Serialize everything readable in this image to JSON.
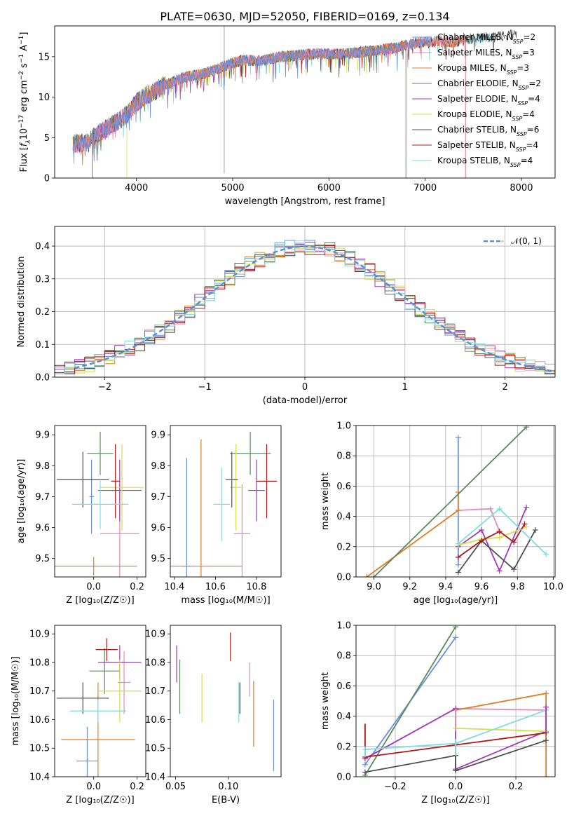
{
  "figure_title": "PLATE=0630, MJD=52050, FIBERID=0169, z=0.134",
  "colors": {
    "chabrier_miles": "#6a8fe0",
    "salpeter_miles": "#e48ab4",
    "kroupa_miles": "#e07c24",
    "chabrier_elodie": "#5a8a5e",
    "salpeter_elodie": "#a23ab8",
    "kroupa_elodie": "#d2e04a",
    "chabrier_stelib": "#505050",
    "salpeter_stelib": "#b01818",
    "kroupa_stelib": "#80dbe3",
    "normal": "#5b8fd6",
    "grid": "#b0b0b0"
  },
  "chart_data": [
    {
      "id": "spectrum",
      "type": "line",
      "title": "PLATE=0630, MJD=52050, FIBERID=0169, z=0.134",
      "xlabel": "wavelength [Angstrom, rest frame]",
      "ylabel_parts": [
        "Flux [",
        "f",
        "λ",
        "10",
        "−17",
        " erg cm",
        "−2",
        " s",
        "−1",
        " A",
        "−1",
        "]"
      ],
      "xlim": [
        3150,
        8350
      ],
      "ylim": [
        0,
        18.8
      ],
      "xticks": [
        "4000",
        "5000",
        "6000",
        "7000",
        "8000"
      ],
      "yticks": [
        "0",
        "5",
        "10",
        "15"
      ],
      "grid": false,
      "legend_position": "top-right",
      "legend": [
        {
          "model": "Chabrier MILES",
          "n": "2"
        },
        {
          "model": "Salpeter MILES",
          "n": "3"
        },
        {
          "model": "Kroupa MILES",
          "n": "3"
        },
        {
          "model": "Chabrier ELODIE",
          "n": "2"
        },
        {
          "model": "Salpeter ELODIE",
          "n": "4"
        },
        {
          "model": "Kroupa ELODIE",
          "n": "4"
        },
        {
          "model": "Chabrier STELIB",
          "n": "6"
        },
        {
          "model": "Salpeter STELIB",
          "n": "4"
        },
        {
          "model": "Kroupa STELIB",
          "n": "4"
        }
      ],
      "continuum": {
        "x": [
          3340,
          3500,
          3600,
          3700,
          3800,
          3900,
          4000,
          4100,
          4200,
          4300,
          4500,
          4700,
          4900,
          5100,
          5300,
          5500,
          5700,
          5900,
          6100,
          6300,
          6500,
          6700,
          6900,
          7100,
          7300,
          7500,
          7700,
          7900,
          8000
        ],
        "y": [
          4.2,
          4.4,
          5.5,
          6.2,
          7.0,
          7.8,
          9.3,
          10.2,
          10.8,
          11.5,
          12.5,
          12.9,
          13.8,
          14.6,
          14.5,
          15.0,
          15.2,
          15.4,
          15.3,
          15.5,
          15.8,
          16.1,
          16.7,
          16.9,
          16.8,
          17.3,
          17.4,
          17.7,
          17.6
        ]
      }
    },
    {
      "id": "residuals",
      "type": "histogram",
      "xlabel": "(data-model)/error",
      "ylabel": "Normed distribution",
      "xlim": [
        -2.5,
        2.5
      ],
      "ylim": [
        0,
        0.46
      ],
      "xticks": [
        "−2",
        "−1",
        "0",
        "1",
        "2"
      ],
      "yticks": [
        "0.0",
        "0.1",
        "0.2",
        "0.3",
        "0.4"
      ],
      "grid": true,
      "legend_position": "top-right",
      "legend": "𝒩(0, 1)",
      "bin_width": 0.1
    },
    {
      "id": "age-vs-Z",
      "type": "errorbar",
      "xlabel": "Z [log₁₀(Z/Z☉)]",
      "ylabel": "age  [log₁₀(age/yr)]",
      "xlim": [
        -0.18,
        0.24
      ],
      "ylim": [
        9.44,
        9.93
      ],
      "xticks": [
        "0.0",
        "0.2"
      ],
      "yticks": [
        "9.5",
        "9.6",
        "9.7",
        "9.8",
        "9.9"
      ],
      "points": [
        {
          "key": "chabrier_miles",
          "x": -0.01,
          "xerr": 0.01,
          "y": 9.7,
          "yerr": 0.12
        },
        {
          "key": "salpeter_miles",
          "x": 0.12,
          "xerr": 0.09,
          "y": 9.58,
          "yerr": 0.16
        },
        {
          "key": "kroupa_miles",
          "x": 0.0,
          "xerr": 0.2,
          "y": 9.475,
          "yerr": 0.03
        },
        {
          "key": "chabrier_elodie",
          "x": 0.03,
          "xerr": 0.06,
          "y": 9.84,
          "yerr": 0.07
        },
        {
          "key": "salpeter_elodie",
          "x": 0.12,
          "xerr": 0.1,
          "y": 9.72,
          "yerr": 0.1
        },
        {
          "key": "kroupa_elodie",
          "x": 0.13,
          "xerr": 0.1,
          "y": 9.73,
          "yerr": 0.14
        },
        {
          "key": "chabrier_stelib",
          "x": -0.05,
          "xerr": 0.12,
          "y": 9.755,
          "yerr": 0.09
        },
        {
          "key": "salpeter_stelib",
          "x": 0.1,
          "xerr": 0.02,
          "y": 9.75,
          "yerr": 0.12
        },
        {
          "key": "kroupa_stelib",
          "x": 0.03,
          "xerr": 0.13,
          "y": 9.675,
          "yerr": 0.08
        }
      ]
    },
    {
      "id": "age-vs-mass",
      "type": "errorbar",
      "xlabel": "mass [log₁₀(M/M☉)]",
      "xlim": [
        10.38,
        10.92
      ],
      "ylim": [
        9.44,
        9.93
      ],
      "xticks": [
        "10.4",
        "10.6",
        "10.8"
      ],
      "yticks": [
        "9.5",
        "9.6",
        "9.7",
        "9.8",
        "9.9"
      ],
      "points": [
        {
          "key": "chabrier_miles",
          "x": 10.46,
          "xerr": 0.02,
          "y": 9.475,
          "yerr": 0.35
        },
        {
          "key": "salpeter_miles",
          "x": 10.73,
          "xerr": 0.04,
          "y": 9.58,
          "yerr": 0.16
        },
        {
          "key": "kroupa_miles",
          "x": 10.53,
          "xerr": 0.2,
          "y": 9.475,
          "yerr": 0.41
        },
        {
          "key": "chabrier_elodie",
          "x": 10.77,
          "xerr": 0.1,
          "y": 9.84,
          "yerr": 0.07
        },
        {
          "key": "salpeter_elodie",
          "x": 10.8,
          "xerr": 0.04,
          "y": 9.72,
          "yerr": 0.1
        },
        {
          "key": "kroupa_elodie",
          "x": 10.7,
          "xerr": 0.03,
          "y": 9.73,
          "yerr": 0.14
        },
        {
          "key": "chabrier_stelib",
          "x": 10.68,
          "xerr": 0.03,
          "y": 9.755,
          "yerr": 0.09
        },
        {
          "key": "salpeter_stelib",
          "x": 10.85,
          "xerr": 0.05,
          "y": 9.75,
          "yerr": 0.12
        },
        {
          "key": "kroupa_stelib",
          "x": 10.63,
          "xerr": 0.04,
          "y": 9.675,
          "yerr": 0.12
        }
      ]
    },
    {
      "id": "massweight-vs-age",
      "type": "line",
      "xlabel": "age  [log₁₀(age/yr)]",
      "ylabel": "mass weight",
      "xlim": [
        8.9,
        10.01
      ],
      "ylim": [
        0,
        1
      ],
      "xticks": [
        "9.0",
        "9.2",
        "9.4",
        "9.6",
        "9.8",
        "10.0"
      ],
      "yticks": [
        "0.0",
        "0.2",
        "0.4",
        "0.6",
        "0.8",
        "1.0"
      ],
      "grid": true,
      "series": [
        {
          "key": "chabrier_miles",
          "x": [
            9.47,
            9.47
          ],
          "y": [
            0.92,
            0.08
          ]
        },
        {
          "key": "salpeter_miles",
          "x": [
            9.47,
            9.65,
            9.7
          ],
          "y": [
            0.44,
            0.45,
            0.3
          ]
        },
        {
          "key": "kroupa_miles",
          "x": [
            8.96,
            9.47,
            9.47
          ],
          "y": [
            0.0,
            0.44,
            0.56
          ]
        },
        {
          "key": "chabrier_elodie",
          "x": [
            9.0,
            9.85
          ],
          "y": [
            0.0,
            0.99
          ]
        },
        {
          "key": "salpeter_elodie",
          "x": [
            9.47,
            9.6,
            9.7,
            9.85
          ],
          "y": [
            0.2,
            0.31,
            0.04,
            0.46
          ]
        },
        {
          "key": "kroupa_elodie",
          "x": [
            9.47,
            9.6,
            9.7,
            9.85
          ],
          "y": [
            0.21,
            0.25,
            0.26,
            0.33
          ]
        },
        {
          "key": "chabrier_stelib",
          "x": [
            9.47,
            9.6,
            9.78,
            9.9
          ],
          "y": [
            0.03,
            0.24,
            0.05,
            0.31
          ]
        },
        {
          "key": "salpeter_stelib",
          "x": [
            9.47,
            9.6,
            9.7,
            9.78,
            9.84
          ],
          "y": [
            0.13,
            0.24,
            0.3,
            0.23,
            0.35
          ]
        },
        {
          "key": "kroupa_stelib",
          "x": [
            9.47,
            9.7,
            9.96
          ],
          "y": [
            0.22,
            0.45,
            0.15
          ]
        }
      ]
    },
    {
      "id": "mass-vs-Z",
      "type": "errorbar",
      "xlabel": "Z [log₁₀(Z/Z☉)]",
      "ylabel": "mass [log₁₀(M/M☉)]",
      "xlim": [
        -0.18,
        0.24
      ],
      "ylim": [
        10.4,
        10.93
      ],
      "xticks": [
        "0.0",
        "0.2"
      ],
      "yticks": [
        "10.4",
        "10.5",
        "10.6",
        "10.7",
        "10.8",
        "10.9"
      ],
      "points": [
        {
          "key": "chabrier_miles",
          "x": -0.03,
          "xerr": 0.05,
          "y": 10.455,
          "yerr": 0.12
        },
        {
          "key": "salpeter_miles",
          "x": 0.14,
          "xerr": 0.03,
          "y": 10.73,
          "yerr": 0.11
        },
        {
          "key": "kroupa_miles",
          "x": 0.02,
          "xerr": 0.17,
          "y": 10.53,
          "yerr": 0.2
        },
        {
          "key": "chabrier_elodie",
          "x": 0.05,
          "xerr": 0.07,
          "y": 10.77,
          "yerr": 0.08
        },
        {
          "key": "salpeter_elodie",
          "x": 0.12,
          "xerr": 0.1,
          "y": 10.8,
          "yerr": 0.06
        },
        {
          "key": "kroupa_elodie",
          "x": 0.12,
          "xerr": 0.1,
          "y": 10.7,
          "yerr": 0.11
        },
        {
          "key": "chabrier_stelib",
          "x": -0.05,
          "xerr": 0.12,
          "y": 10.675,
          "yerr": 0.055
        },
        {
          "key": "salpeter_stelib",
          "x": 0.06,
          "xerr": 0.05,
          "y": 10.845,
          "yerr": 0.04
        },
        {
          "key": "kroupa_stelib",
          "x": 0.02,
          "xerr": 0.13,
          "y": 10.63,
          "yerr": 0.04
        }
      ]
    },
    {
      "id": "mass-vs-ebv",
      "type": "errorbar",
      "xlabel": "E(B-V)",
      "xlim": [
        0.045,
        0.15
      ],
      "ylim": [
        10.4,
        10.93
      ],
      "xticks": [
        "0.05",
        "0.10"
      ],
      "yticks": [
        "10.4",
        "10.5",
        "10.6",
        "10.7",
        "10.8",
        "10.9"
      ],
      "points": [
        {
          "key": "chabrier_miles",
          "x": 0.143,
          "xerr": 0,
          "y": 10.545,
          "yerr": 0.125
        },
        {
          "key": "salpeter_miles",
          "x": 0.12,
          "xerr": 0,
          "y": 10.74,
          "yerr": 0.06
        },
        {
          "key": "kroupa_miles",
          "x": 0.124,
          "xerr": 0,
          "y": 10.62,
          "yerr": 0.115
        },
        {
          "key": "chabrier_elodie",
          "x": 0.054,
          "xerr": 0,
          "y": 10.715,
          "yerr": 0.095
        },
        {
          "key": "salpeter_elodie",
          "x": 0.051,
          "xerr": 0,
          "y": 10.795,
          "yerr": 0.065
        },
        {
          "key": "kroupa_elodie",
          "x": 0.075,
          "xerr": 0,
          "y": 10.675,
          "yerr": 0.085
        },
        {
          "key": "chabrier_stelib",
          "x": 0.111,
          "xerr": 0,
          "y": 10.675,
          "yerr": 0.055
        },
        {
          "key": "salpeter_stelib",
          "x": 0.102,
          "xerr": 0,
          "y": 10.855,
          "yerr": 0.05
        },
        {
          "key": "kroupa_stelib",
          "x": 0.11,
          "xerr": 0,
          "y": 10.66,
          "yerr": 0.07
        }
      ]
    },
    {
      "id": "massweight-vs-Z",
      "type": "line",
      "xlabel": "Z [log₁₀(Z/Z☉)]",
      "ylabel": "mass weight",
      "xlim": [
        -0.33,
        0.33
      ],
      "ylim": [
        0,
        1
      ],
      "xticks": [
        "−0.2",
        "0.0",
        "0.2"
      ],
      "yticks": [
        "0.0",
        "0.2",
        "0.4",
        "0.6",
        "0.8",
        "1.0"
      ],
      "grid": true,
      "series": [
        {
          "key": "chabrier_miles",
          "x": [
            -0.3,
            0.0
          ],
          "y": [
            0.08,
            0.92
          ]
        },
        {
          "key": "salpeter_miles",
          "x": [
            -0.3,
            0.0,
            0.3
          ],
          "y": [
            0.12,
            0.45,
            0.44
          ]
        },
        {
          "key": "kroupa_miles",
          "x": [
            0.0,
            0.3,
            0.3
          ],
          "y": [
            0.44,
            0.55,
            0.0
          ]
        },
        {
          "key": "chabrier_elodie",
          "x": [
            -0.3,
            0.0
          ],
          "y": [
            0.01,
            0.99
          ]
        },
        {
          "key": "salpeter_elodie",
          "x": [
            -0.3,
            0.0,
            0.0,
            0.3,
            0.3
          ],
          "y": [
            0.12,
            0.45,
            0.05,
            0.3,
            0.46
          ]
        },
        {
          "key": "kroupa_elodie",
          "x": [
            0.0,
            0.3
          ],
          "y": [
            0.32,
            0.3
          ]
        },
        {
          "key": "chabrier_stelib",
          "x": [
            -0.3,
            0.0,
            0.0,
            0.3
          ],
          "y": [
            0.03,
            0.14,
            0.04,
            0.24
          ]
        },
        {
          "key": "salpeter_stelib",
          "x": [
            -0.3,
            0.0,
            0.3
          ],
          "y": [
            0.13,
            0.21,
            0.29
          ]
        },
        {
          "key": "kroupa_stelib",
          "x": [
            -0.3,
            0.0,
            0.3
          ],
          "y": [
            0.18,
            0.22,
            0.44
          ]
        }
      ],
      "vbars": [
        {
          "key": "salpeter_stelib",
          "x": -0.3,
          "y": [
            0.13,
            0.35
          ]
        },
        {
          "key": "kroupa_stelib",
          "x": -0.3,
          "y": [
            0.13,
            0.2
          ]
        },
        {
          "key": "salpeter_miles",
          "x": 0.0,
          "y": [
            0.3,
            0.45
          ]
        },
        {
          "key": "kroupa_stelib",
          "x": 0.0,
          "y": [
            0.14,
            0.25
          ]
        },
        {
          "key": "salpeter_elodie",
          "x": 0.3,
          "y": [
            0.29,
            0.46
          ]
        }
      ]
    }
  ]
}
